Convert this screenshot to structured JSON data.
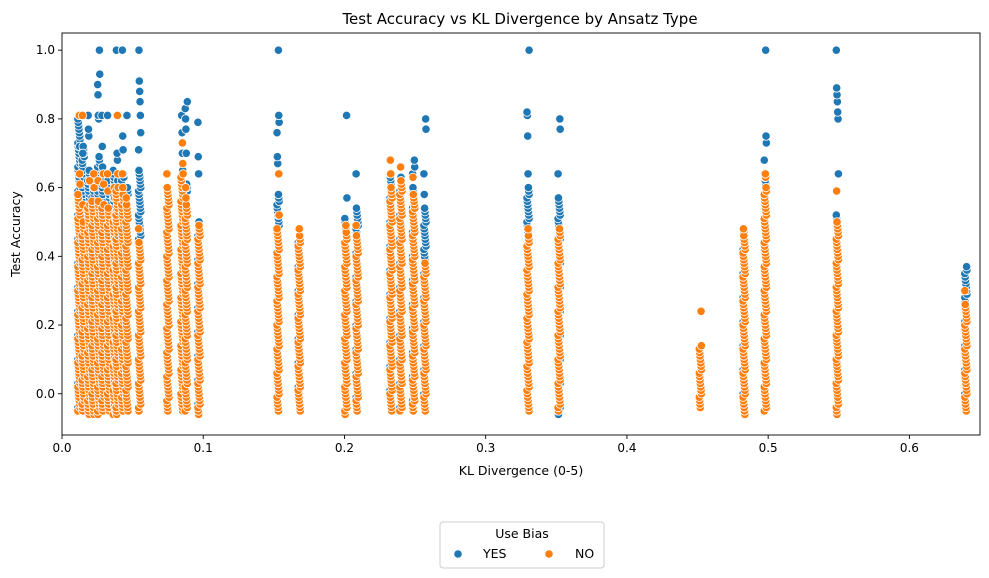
{
  "chart_data": {
    "type": "scatter",
    "title": "Test Accuracy vs KL Divergence by Ansatz Type",
    "xlabel": "KL Divergence (0-5)",
    "ylabel": "Test Accuracy",
    "xlim": [
      0.0,
      0.65
    ],
    "ylim": [
      -0.12,
      1.05
    ],
    "xticks": [
      0.0,
      0.1,
      0.2,
      0.3,
      0.4,
      0.5,
      0.6
    ],
    "xtick_labels": [
      "0.0",
      "0.1",
      "0.2",
      "0.3",
      "0.4",
      "0.5",
      "0.6"
    ],
    "yticks": [
      0.0,
      0.2,
      0.4,
      0.6,
      0.8,
      1.0
    ],
    "ytick_labels": [
      "0.0",
      "0.2",
      "0.4",
      "0.6",
      "0.8",
      "1.0"
    ],
    "grid": false,
    "legend": {
      "title": "Use Bias",
      "placement": "bottom-center",
      "entries": [
        "YES",
        "NO"
      ]
    },
    "series": [
      {
        "name": "YES",
        "color": "#1f77b4",
        "columns": [
          {
            "x": 0.012,
            "min": -0.04,
            "max": 0.81,
            "extra": [
              0.72,
              0.81
            ]
          },
          {
            "x": 0.015,
            "min": -0.04,
            "max": 0.72,
            "extra": [
              0.7
            ]
          },
          {
            "x": 0.019,
            "min": -0.05,
            "max": 0.65,
            "extra": [
              0.75,
              0.77,
              0.81
            ]
          },
          {
            "x": 0.022,
            "min": -0.05,
            "max": 0.62,
            "extra": []
          },
          {
            "x": 0.026,
            "min": -0.05,
            "max": 0.69,
            "extra": [
              0.8,
              0.81,
              0.87,
              0.9,
              0.93,
              1.0
            ]
          },
          {
            "x": 0.029,
            "min": -0.05,
            "max": 0.66,
            "extra": [
              0.72,
              0.81
            ]
          },
          {
            "x": 0.033,
            "min": -0.05,
            "max": 0.62,
            "extra": [
              0.81
            ]
          },
          {
            "x": 0.037,
            "min": -0.05,
            "max": 0.65,
            "extra": []
          },
          {
            "x": 0.039,
            "min": -0.05,
            "max": 0.62,
            "extra": [
              0.68,
              0.7,
              0.81,
              1.0
            ]
          },
          {
            "x": 0.043,
            "min": -0.05,
            "max": 0.64,
            "extra": [
              0.71,
              0.75,
              1.0
            ]
          },
          {
            "x": 0.046,
            "min": -0.05,
            "max": 0.6,
            "extra": [
              0.81
            ]
          },
          {
            "x": 0.055,
            "min": -0.05,
            "max": 0.65,
            "extra": [
              0.71,
              0.76,
              0.81,
              0.85,
              0.88,
              0.91,
              1.0
            ]
          },
          {
            "x": 0.075,
            "min": -0.05,
            "max": 0.57,
            "extra": []
          },
          {
            "x": 0.085,
            "min": -0.05,
            "max": 0.65,
            "extra": [
              0.7,
              0.76,
              0.81
            ]
          },
          {
            "x": 0.088,
            "min": -0.05,
            "max": 0.61,
            "extra": [
              0.7,
              0.77,
              0.8,
              0.83,
              0.85
            ]
          },
          {
            "x": 0.097,
            "min": -0.05,
            "max": 0.5,
            "extra": [
              0.64,
              0.69,
              0.79
            ]
          },
          {
            "x": 0.153,
            "min": -0.05,
            "max": 0.58,
            "extra": [
              0.64,
              0.67,
              0.69,
              0.76,
              0.79,
              0.81,
              1.0
            ]
          },
          {
            "x": 0.168,
            "min": -0.04,
            "max": 0.46,
            "extra": [
              0.48
            ]
          },
          {
            "x": 0.201,
            "min": -0.06,
            "max": 0.51,
            "extra": [
              0.57,
              0.81
            ]
          },
          {
            "x": 0.209,
            "min": -0.04,
            "max": 0.54,
            "extra": [
              0.64
            ]
          },
          {
            "x": 0.233,
            "min": -0.04,
            "max": 0.64,
            "extra": []
          },
          {
            "x": 0.24,
            "min": -0.04,
            "max": 0.63,
            "extra": [
              0.66
            ]
          },
          {
            "x": 0.249,
            "min": -0.04,
            "max": 0.6,
            "extra": [
              0.64,
              0.66,
              0.68
            ]
          },
          {
            "x": 0.257,
            "min": -0.04,
            "max": 0.54,
            "extra": [
              0.58,
              0.64,
              0.77,
              0.8
            ]
          },
          {
            "x": 0.33,
            "min": -0.05,
            "max": 0.6,
            "extra": [
              0.64,
              0.75,
              0.81,
              0.82,
              1.0
            ]
          },
          {
            "x": 0.352,
            "min": -0.06,
            "max": 0.57,
            "extra": [
              0.64,
              0.77,
              0.8
            ]
          },
          {
            "x": 0.452,
            "min": -0.04,
            "max": 0.14,
            "extra": []
          },
          {
            "x": 0.483,
            "min": -0.05,
            "max": 0.48,
            "extra": []
          },
          {
            "x": 0.498,
            "min": -0.05,
            "max": 0.64,
            "extra": [
              0.68,
              0.73,
              0.75,
              1.0
            ]
          },
          {
            "x": 0.549,
            "min": -0.06,
            "max": 0.52,
            "extra": [
              0.64,
              0.8,
              0.82,
              0.85,
              0.87,
              0.89,
              1.0
            ]
          },
          {
            "x": 0.64,
            "min": -0.04,
            "max": 0.36,
            "extra": [
              0.37
            ]
          }
        ]
      },
      {
        "name": "NO",
        "color": "#ff7f0e",
        "columns": [
          {
            "x": 0.012,
            "min": -0.05,
            "max": 0.58,
            "extra": [
              0.61,
              0.64,
              0.81
            ]
          },
          {
            "x": 0.015,
            "min": -0.05,
            "max": 0.5,
            "extra": [
              0.55,
              0.81
            ]
          },
          {
            "x": 0.019,
            "min": -0.06,
            "max": 0.55,
            "extra": [
              0.62
            ]
          },
          {
            "x": 0.022,
            "min": -0.06,
            "max": 0.56,
            "extra": [
              0.6,
              0.64
            ]
          },
          {
            "x": 0.026,
            "min": -0.06,
            "max": 0.56,
            "extra": [
              0.62
            ]
          },
          {
            "x": 0.029,
            "min": -0.05,
            "max": 0.55,
            "extra": [
              0.61,
              0.64
            ]
          },
          {
            "x": 0.033,
            "min": -0.05,
            "max": 0.54,
            "extra": [
              0.59,
              0.64
            ]
          },
          {
            "x": 0.037,
            "min": -0.06,
            "max": 0.52,
            "extra": [
              0.57,
              0.6
            ]
          },
          {
            "x": 0.039,
            "min": -0.06,
            "max": 0.6,
            "extra": [
              0.64,
              0.81
            ]
          },
          {
            "x": 0.043,
            "min": -0.05,
            "max": 0.58,
            "extra": [
              0.6,
              0.64
            ]
          },
          {
            "x": 0.046,
            "min": -0.05,
            "max": 0.55,
            "extra": [
              0.57
            ]
          },
          {
            "x": 0.055,
            "min": -0.05,
            "max": 0.44,
            "extra": [
              0.48
            ]
          },
          {
            "x": 0.075,
            "min": -0.05,
            "max": 0.6,
            "extra": [
              0.64
            ]
          },
          {
            "x": 0.085,
            "min": -0.05,
            "max": 0.64,
            "extra": [
              0.67,
              0.73
            ]
          },
          {
            "x": 0.088,
            "min": -0.05,
            "max": 0.55,
            "extra": [
              0.57,
              0.6
            ]
          },
          {
            "x": 0.097,
            "min": -0.06,
            "max": 0.49,
            "extra": []
          },
          {
            "x": 0.153,
            "min": -0.05,
            "max": 0.48,
            "extra": [
              0.52,
              0.64
            ]
          },
          {
            "x": 0.168,
            "min": -0.05,
            "max": 0.46,
            "extra": [
              0.48
            ]
          },
          {
            "x": 0.201,
            "min": -0.06,
            "max": 0.47,
            "extra": [
              0.49
            ]
          },
          {
            "x": 0.209,
            "min": -0.05,
            "max": 0.46,
            "extra": [
              0.49
            ]
          },
          {
            "x": 0.233,
            "min": -0.05,
            "max": 0.6,
            "extra": [
              0.64,
              0.68
            ]
          },
          {
            "x": 0.24,
            "min": -0.05,
            "max": 0.62,
            "extra": [
              0.66
            ]
          },
          {
            "x": 0.249,
            "min": -0.05,
            "max": 0.58,
            "extra": [
              0.63
            ]
          },
          {
            "x": 0.257,
            "min": -0.05,
            "max": 0.38,
            "extra": []
          },
          {
            "x": 0.33,
            "min": -0.05,
            "max": 0.46,
            "extra": [
              0.48
            ]
          },
          {
            "x": 0.352,
            "min": -0.05,
            "max": 0.48,
            "extra": []
          },
          {
            "x": 0.452,
            "min": -0.04,
            "max": 0.14,
            "extra": [
              0.24
            ]
          },
          {
            "x": 0.483,
            "min": -0.06,
            "max": 0.46,
            "extra": [
              0.48
            ]
          },
          {
            "x": 0.498,
            "min": -0.05,
            "max": 0.6,
            "extra": [
              0.63,
              0.64
            ]
          },
          {
            "x": 0.549,
            "min": -0.06,
            "max": 0.5,
            "extra": [
              0.59
            ]
          },
          {
            "x": 0.64,
            "min": -0.05,
            "max": 0.26,
            "extra": [
              0.3
            ]
          }
        ]
      }
    ]
  }
}
